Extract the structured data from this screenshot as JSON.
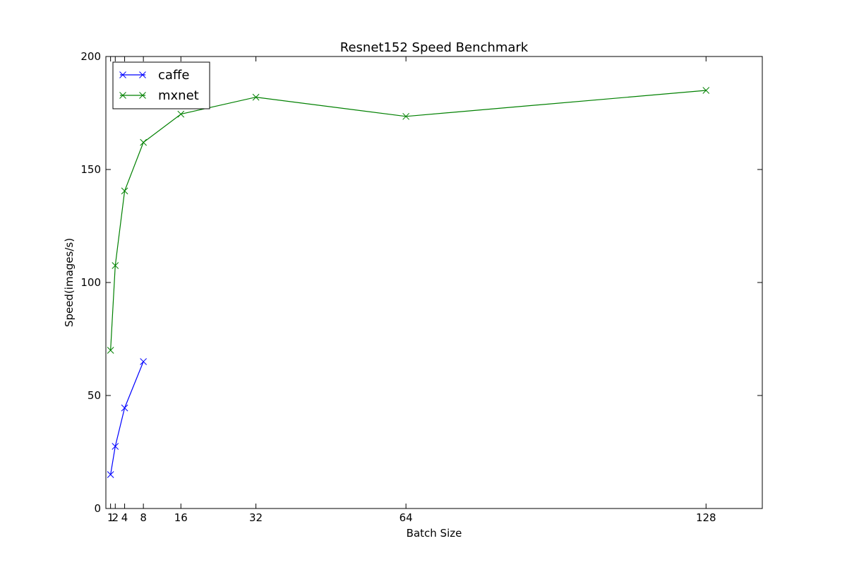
{
  "chart_data": {
    "type": "line",
    "title": "Resnet152 Speed Benchmark",
    "xlabel": "Batch Size",
    "ylabel": "Speed(images/s)",
    "xlim": [
      0,
      140
    ],
    "ylim": [
      0,
      200
    ],
    "xticks": [
      1,
      2,
      4,
      8,
      16,
      32,
      64,
      128
    ],
    "xtick_labels": [
      "1",
      "2",
      "4",
      "8",
      "16",
      "32",
      "64",
      "128"
    ],
    "yticks": [
      0,
      50,
      100,
      150,
      200
    ],
    "ytick_labels": [
      "0",
      "50",
      "100",
      "150",
      "200"
    ],
    "grid": false,
    "legend_position": "top-left",
    "series": [
      {
        "name": "caffe",
        "color": "#0000ff",
        "marker": "x",
        "x": [
          1,
          2,
          4,
          8
        ],
        "y": [
          15,
          27.5,
          44.5,
          65
        ]
      },
      {
        "name": "mxnet",
        "color": "#008000",
        "marker": "x",
        "x": [
          1,
          2,
          4,
          8,
          16,
          32,
          64,
          128
        ],
        "y": [
          70,
          107.5,
          140.5,
          162,
          174.5,
          182,
          173.5,
          185
        ]
      }
    ]
  }
}
